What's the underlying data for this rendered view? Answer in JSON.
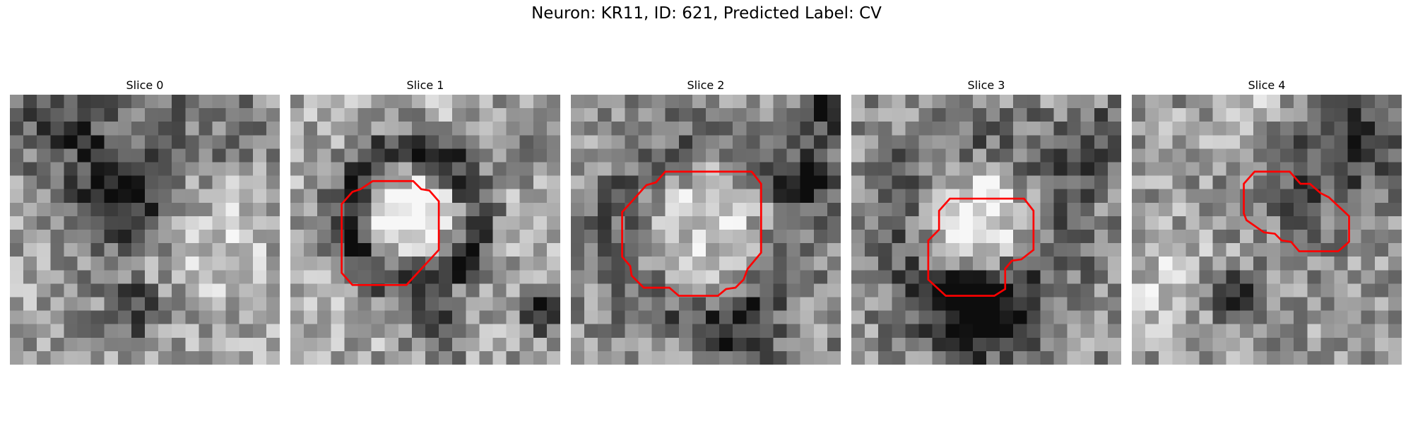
{
  "figure": {
    "title": "Neuron: KR11, ID: 621, Predicted Label: CV",
    "contour_color": "#ff0000",
    "grid_size": 20,
    "panels": [
      {
        "title": "Slice 0",
        "blobs": [
          {
            "cx": 8,
            "cy": 8,
            "r": 2.5,
            "v": -0.6
          },
          {
            "cx": 4,
            "cy": 2,
            "r": 3.0,
            "v": -0.35
          },
          {
            "cx": 9,
            "cy": 16,
            "r": 1.5,
            "v": -0.45
          },
          {
            "cx": 15,
            "cy": 10,
            "r": 3.5,
            "v": 0.2
          },
          {
            "cx": 14,
            "cy": 2,
            "r": 4.0,
            "v": -0.2
          }
        ],
        "base": 0.62,
        "contour": []
      },
      {
        "title": "Slice 1",
        "blobs": [
          {
            "cx": 9,
            "cy": 9,
            "r": 3.0,
            "v": 0.35
          },
          {
            "ring": true,
            "cx": 9,
            "cy": 9,
            "r": 4.8,
            "w": 1.2,
            "v": -0.55
          },
          {
            "cx": 18.5,
            "cy": 16,
            "r": 1.2,
            "v": -0.6
          },
          {
            "cx": 11,
            "cy": 17.5,
            "r": 1.5,
            "v": -0.35
          },
          {
            "cx": 19,
            "cy": 3,
            "r": 2.0,
            "v": -0.2
          }
        ],
        "base": 0.65,
        "contour": [
          [
            3.8,
            8.1
          ],
          [
            4.6,
            7.2
          ],
          [
            5.2,
            7.0
          ],
          [
            6.1,
            6.4
          ],
          [
            9.1,
            6.4
          ],
          [
            9.7,
            7.0
          ],
          [
            10.3,
            7.1
          ],
          [
            11.0,
            7.9
          ],
          [
            11.0,
            11.5
          ],
          [
            8.6,
            14.1
          ],
          [
            4.6,
            14.1
          ],
          [
            3.8,
            13.2
          ]
        ]
      },
      {
        "title": "Slice 2",
        "blobs": [
          {
            "cx": 10,
            "cy": 9.5,
            "r": 4.5,
            "v": 0.25
          },
          {
            "ring": true,
            "cx": 10,
            "cy": 10,
            "r": 6.5,
            "w": 1.6,
            "v": -0.25
          },
          {
            "cx": 18,
            "cy": 6,
            "r": 1.5,
            "v": -0.45
          },
          {
            "cx": 19,
            "cy": 1,
            "r": 1.5,
            "v": -0.5
          },
          {
            "cx": 13,
            "cy": 18,
            "r": 2.0,
            "v": -0.3
          }
        ],
        "base": 0.55,
        "contour": [
          [
            3.8,
            8.7
          ],
          [
            5.6,
            6.7
          ],
          [
            6.3,
            6.5
          ],
          [
            7.0,
            5.7
          ],
          [
            13.4,
            5.7
          ],
          [
            14.1,
            6.6
          ],
          [
            14.1,
            11.7
          ],
          [
            13.1,
            12.9
          ],
          [
            12.8,
            13.7
          ],
          [
            12.2,
            14.3
          ],
          [
            11.5,
            14.4
          ],
          [
            10.9,
            14.9
          ],
          [
            8.0,
            14.9
          ],
          [
            7.3,
            14.3
          ],
          [
            5.4,
            14.3
          ],
          [
            4.5,
            13.4
          ],
          [
            4.4,
            12.7
          ],
          [
            3.8,
            12.0
          ]
        ]
      },
      {
        "title": "Slice 3",
        "blobs": [
          {
            "cx": 9.5,
            "cy": 9,
            "r": 3.5,
            "v": 0.4
          },
          {
            "ring": true,
            "cx": 9.5,
            "cy": 9.5,
            "r": 6.0,
            "w": 1.8,
            "v": -0.25
          },
          {
            "cx": 9.5,
            "cy": 16,
            "r": 2.5,
            "v": -0.55
          },
          {
            "cx": 19,
            "cy": 4,
            "r": 2.0,
            "v": -0.3
          }
        ],
        "base": 0.55,
        "contour": [
          [
            6.5,
            8.6
          ],
          [
            7.3,
            7.7
          ],
          [
            12.8,
            7.7
          ],
          [
            13.5,
            8.6
          ],
          [
            13.5,
            11.5
          ],
          [
            12.6,
            12.2
          ],
          [
            11.9,
            12.3
          ],
          [
            11.4,
            12.9
          ],
          [
            11.4,
            14.4
          ],
          [
            10.6,
            14.9
          ],
          [
            7.0,
            14.9
          ],
          [
            5.7,
            13.7
          ],
          [
            5.7,
            10.8
          ],
          [
            6.5,
            10.0
          ]
        ]
      },
      {
        "title": "Slice 4",
        "blobs": [
          {
            "cx": 13,
            "cy": 6,
            "r": 3.5,
            "v": -0.3
          },
          {
            "cx": 7.5,
            "cy": 15,
            "r": 1.5,
            "v": -0.5
          },
          {
            "cx": 18,
            "cy": 3,
            "r": 2.5,
            "v": -0.35
          },
          {
            "cx": 3,
            "cy": 14,
            "r": 3.0,
            "v": 0.2
          },
          {
            "cx": 10,
            "cy": 1,
            "r": 3.0,
            "v": 0.15
          }
        ],
        "base": 0.6,
        "contour": [
          [
            8.3,
            6.6
          ],
          [
            9.1,
            5.7
          ],
          [
            11.7,
            5.7
          ],
          [
            12.5,
            6.6
          ],
          [
            13.2,
            6.6
          ],
          [
            14.0,
            7.3
          ],
          [
            14.6,
            7.6
          ],
          [
            16.1,
            9.0
          ],
          [
            16.1,
            10.9
          ],
          [
            15.3,
            11.6
          ],
          [
            12.4,
            11.6
          ],
          [
            11.8,
            10.9
          ],
          [
            11.1,
            10.8
          ],
          [
            10.6,
            10.3
          ],
          [
            9.8,
            10.2
          ],
          [
            8.5,
            9.3
          ],
          [
            8.3,
            8.8
          ]
        ]
      }
    ]
  }
}
